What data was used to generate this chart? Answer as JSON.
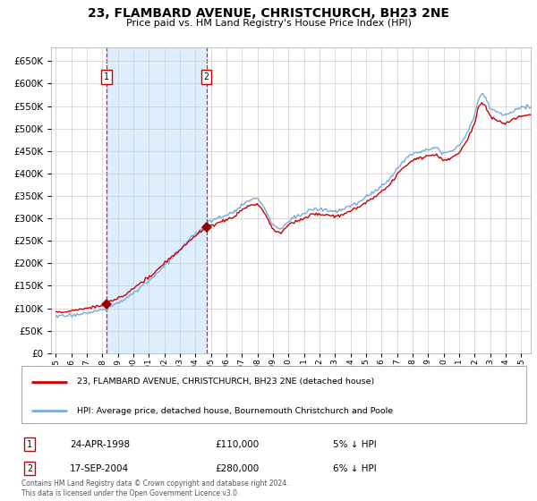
{
  "title": "23, FLAMBARD AVENUE, CHRISTCHURCH, BH23 2NE",
  "subtitle": "Price paid vs. HM Land Registry's House Price Index (HPI)",
  "legend_line1": "23, FLAMBARD AVENUE, CHRISTCHURCH, BH23 2NE (detached house)",
  "legend_line2": "HPI: Average price, detached house, Bournemouth Christchurch and Poole",
  "purchase1_date": "24-APR-1998",
  "purchase1_price": 110000,
  "purchase1_label": "1",
  "purchase1_pct": "5% ↓ HPI",
  "purchase2_date": "17-SEP-2004",
  "purchase2_price": 280000,
  "purchase2_label": "2",
  "purchase2_pct": "6% ↓ HPI",
  "footnote": "Contains HM Land Registry data © Crown copyright and database right 2024.\nThis data is licensed under the Open Government Licence v3.0.",
  "hpi_color": "#7aabdb",
  "price_color": "#cc0000",
  "marker_color": "#990000",
  "shading_color": "#ddeeff",
  "vline_color": "#cc0000",
  "grid_color": "#cccccc",
  "bg_color": "#ffffff",
  "ylim": [
    0,
    680000
  ],
  "ytick_step": 50000,
  "start_year": 1995,
  "end_year": 2025,
  "purchase1_year": 1998.29,
  "purchase2_year": 2004.71
}
